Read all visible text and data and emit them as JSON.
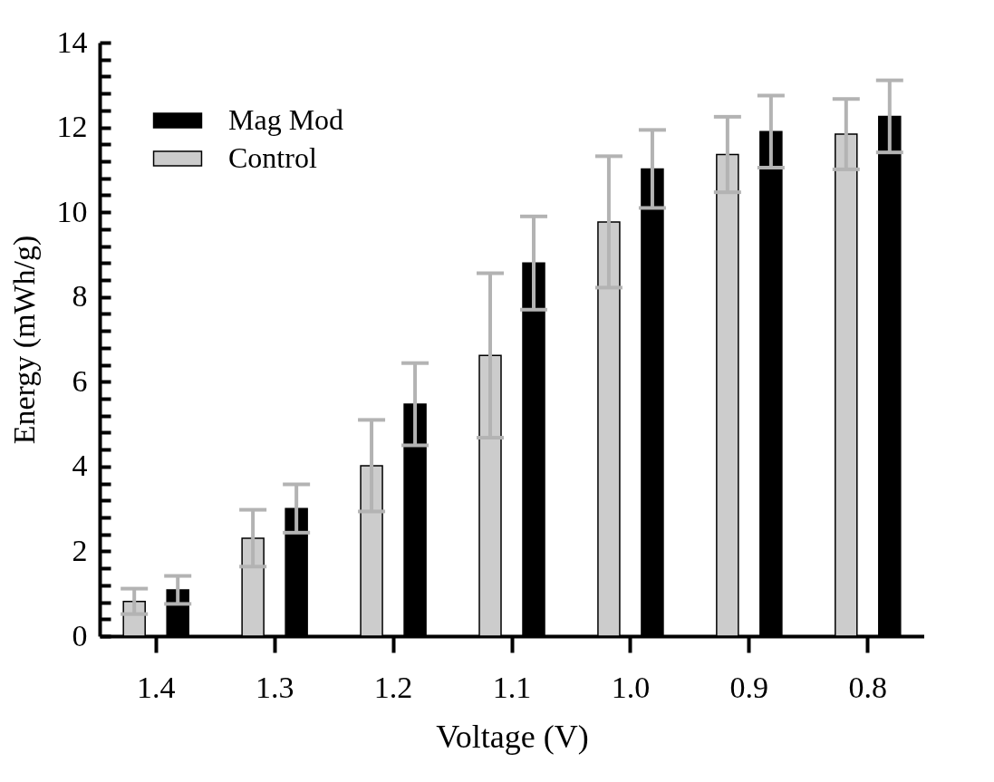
{
  "chart_data": {
    "type": "bar",
    "xlabel": "Voltage (V)",
    "ylabel": "Energy (mWh/g)",
    "categories": [
      "1.4",
      "1.3",
      "1.2",
      "1.1",
      "1.0",
      "0.9",
      "0.8"
    ],
    "series": [
      {
        "name": "Mag Mod",
        "color": "#000000",
        "values": [
          1.09,
          3.01,
          5.47,
          8.8,
          11.02,
          11.9,
          12.26
        ],
        "errors": [
          0.33,
          0.57,
          0.97,
          1.1,
          0.92,
          0.85,
          0.85
        ]
      },
      {
        "name": "Control",
        "color": "#cccccc",
        "values": [
          0.82,
          2.31,
          4.02,
          6.62,
          9.77,
          11.36,
          11.84
        ],
        "errors": [
          0.3,
          0.67,
          1.08,
          1.94,
          1.55,
          0.89,
          0.83
        ]
      }
    ],
    "ylim": [
      0,
      14
    ],
    "yticks": [
      0,
      {
        "value": 0.4,
        "label": null
      },
      {
        "value": 0.8,
        "label": null
      },
      {
        "value": 1.2,
        "label": null
      },
      {
        "value": 1.6,
        "label": null
      },
      2,
      {
        "value": 2.4,
        "label": null
      },
      {
        "value": 2.8,
        "label": null
      },
      {
        "value": 3.2,
        "label": null
      },
      {
        "value": 3.6,
        "label": null
      },
      4,
      {
        "value": 4.4,
        "label": null
      },
      {
        "value": 4.8,
        "label": null
      },
      {
        "value": 5.2,
        "label": null
      },
      {
        "value": 5.6,
        "label": null
      },
      6,
      {
        "value": 6.4,
        "label": null
      },
      {
        "value": 6.8,
        "label": null
      },
      {
        "value": 7.2,
        "label": null
      },
      {
        "value": 7.6,
        "label": null
      },
      8,
      {
        "value": 8.4,
        "label": null
      },
      {
        "value": 8.8,
        "label": null
      },
      {
        "value": 9.2,
        "label": null
      },
      {
        "value": 9.6,
        "label": null
      },
      10,
      {
        "value": 10.4,
        "label": null
      },
      {
        "value": 10.8,
        "label": null
      },
      {
        "value": 11.2,
        "label": null
      },
      {
        "value": 11.6,
        "label": null
      },
      12,
      {
        "value": 12.4,
        "label": null
      },
      {
        "value": 12.8,
        "label": null
      },
      {
        "value": 13.2,
        "label": null
      },
      {
        "value": 13.6,
        "label": null
      },
      14
    ],
    "grid": false,
    "legend": "top left"
  }
}
